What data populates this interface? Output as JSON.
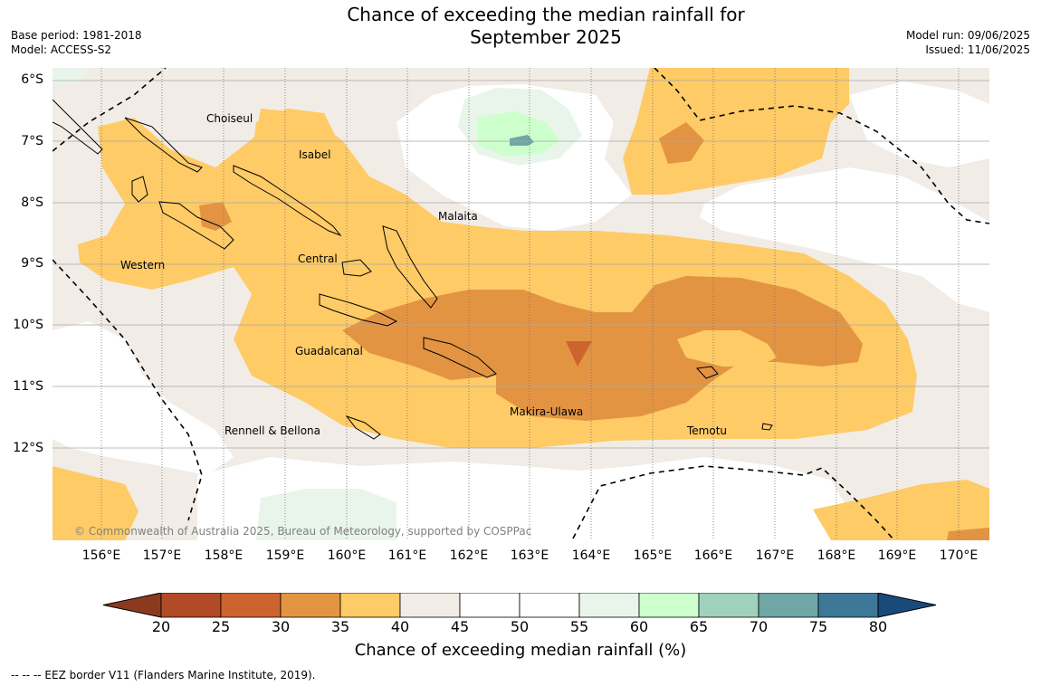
{
  "title_line1": "Chance of exceeding the median rainfall for",
  "title_line2": "September 2025",
  "base_period": "Base period: 1981-2018",
  "model": "Model: ACCESS-S2",
  "model_run": "Model run: 09/06/2025",
  "issued": "Issued: 11/06/2025",
  "lat_labels": [
    "6°S",
    "7°S",
    "8°S",
    "9°S",
    "10°S",
    "11°S",
    "12°S"
  ],
  "lon_labels": [
    "156°E",
    "157°E",
    "158°E",
    "159°E",
    "160°E",
    "161°E",
    "162°E",
    "163°E",
    "164°E",
    "165°E",
    "166°E",
    "167°E",
    "168°E",
    "169°E",
    "170°E"
  ],
  "regions": {
    "choiseul": "Choiseul",
    "isabel": "Isabel",
    "malaita": "Malaita",
    "western": "Western",
    "central": "Central",
    "guadalcanal": "Guadalcanal",
    "makira": "Makira-Ulawa",
    "rennell": "Rennell & Bellona",
    "temotu": "Temotu"
  },
  "copyright": "© Commonwealth of Australia 2025, Bureau of Meteorology, supported by COSPPac",
  "colorbar": {
    "ticks": [
      "20",
      "25",
      "30",
      "35",
      "40",
      "45",
      "50",
      "55",
      "60",
      "65",
      "70",
      "75",
      "80"
    ],
    "colors": [
      "#b14a26",
      "#cd6430",
      "#e39442",
      "#fecb66",
      "#f1ece6",
      "#ffffff",
      "#ffffff",
      "#e9f5ea",
      "#ccffcc",
      "#9fd1bc",
      "#6fa6a6",
      "#3e7898"
    ],
    "under_color": "#8b3a1f",
    "over_color": "#1a4a7a",
    "label": "Chance of exceeding median rainfall (%)"
  },
  "legend": "--  --  -- EEZ border V11 (Flanders Marine Institute, 2019)."
}
